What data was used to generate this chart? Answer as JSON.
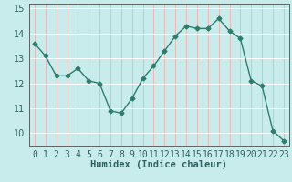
{
  "x": [
    0,
    1,
    2,
    3,
    4,
    5,
    6,
    7,
    8,
    9,
    10,
    11,
    12,
    13,
    14,
    15,
    16,
    17,
    18,
    19,
    20,
    21,
    22,
    23
  ],
  "y": [
    13.6,
    13.1,
    12.3,
    12.3,
    12.6,
    12.1,
    12.0,
    10.9,
    10.8,
    11.4,
    12.2,
    12.7,
    13.3,
    13.9,
    14.3,
    14.2,
    14.2,
    14.6,
    14.1,
    13.8,
    12.1,
    11.9,
    10.1,
    9.7
  ],
  "xlabel": "Humidex (Indice chaleur)",
  "ylim": [
    9.5,
    15.2
  ],
  "xlim": [
    -0.5,
    23.5
  ],
  "yticks": [
    10,
    11,
    12,
    13,
    14,
    15
  ],
  "xticks": [
    0,
    1,
    2,
    3,
    4,
    5,
    6,
    7,
    8,
    9,
    10,
    11,
    12,
    13,
    14,
    15,
    16,
    17,
    18,
    19,
    20,
    21,
    22,
    23
  ],
  "line_color": "#2d7d6e",
  "marker": "D",
  "marker_size": 2.5,
  "bg_color": "#c8eceb",
  "grid_h_color": "#ffffff",
  "grid_v_color": "#e8b8b8",
  "axis_color": "#606060",
  "tick_label_color": "#2d6060",
  "xlabel_color": "#2d6060",
  "xlabel_fontsize": 7.5,
  "tick_fontsize": 7,
  "ytick_fontsize": 7
}
